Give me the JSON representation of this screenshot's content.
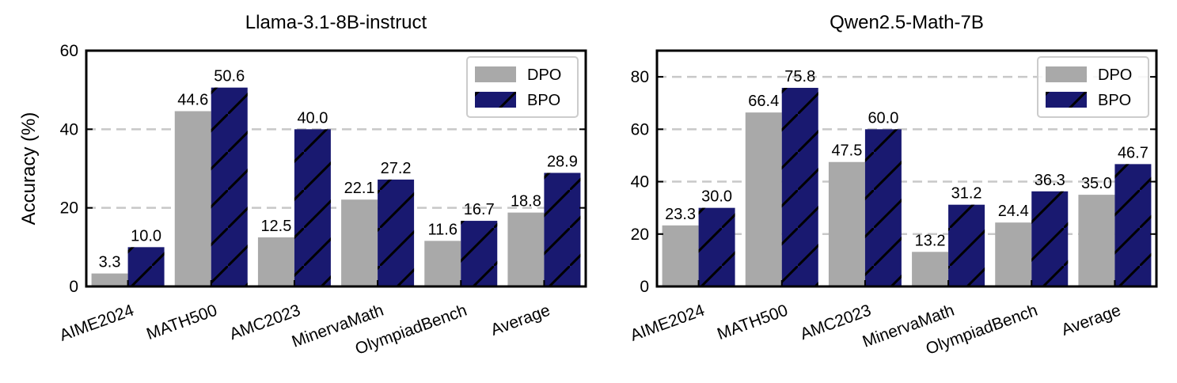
{
  "colors": {
    "dpo": "#a9a9a9",
    "bpo": "#191970",
    "grid": "#c8c8c8",
    "hatch": "#000000"
  },
  "chart_data": [
    {
      "type": "bar",
      "title": "Llama-3.1-8B-instruct",
      "ylabel": "Accuracy (%)",
      "xlabel": "",
      "ylim": [
        0,
        60
      ],
      "yticks": [
        0,
        20,
        40,
        60
      ],
      "grid": "horizontal dashed",
      "legend_position": "top-right",
      "categories": [
        "AIME2024",
        "MATH500",
        "AMC2023",
        "MinervaMath",
        "OlympiadBench",
        "Average"
      ],
      "series": [
        {
          "name": "DPO",
          "values": [
            3.3,
            44.6,
            12.5,
            22.1,
            11.6,
            18.8
          ],
          "labels": [
            "3.3",
            "44.6",
            "12.5",
            "22.1",
            "11.6",
            "18.8"
          ]
        },
        {
          "name": "BPO",
          "values": [
            10.0,
            50.6,
            40.0,
            27.2,
            16.7,
            28.9
          ],
          "labels": [
            "10.0",
            "50.6",
            "40.0",
            "27.2",
            "16.7",
            "28.9"
          ]
        }
      ]
    },
    {
      "type": "bar",
      "title": "Qwen2.5-Math-7B",
      "ylabel": "",
      "xlabel": "",
      "ylim": [
        0,
        90
      ],
      "yticks": [
        0,
        20,
        40,
        60,
        80
      ],
      "grid": "horizontal dashed",
      "legend_position": "top-right",
      "categories": [
        "AIME2024",
        "MATH500",
        "AMC2023",
        "MinervaMath",
        "OlympiadBench",
        "Average"
      ],
      "series": [
        {
          "name": "DPO",
          "values": [
            23.3,
            66.4,
            47.5,
            13.2,
            24.4,
            35.0
          ],
          "labels": [
            "23.3",
            "66.4",
            "47.5",
            "13.2",
            "24.4",
            "35.0"
          ]
        },
        {
          "name": "BPO",
          "values": [
            30.0,
            75.8,
            60.0,
            31.2,
            36.3,
            46.7
          ],
          "labels": [
            "30.0",
            "75.8",
            "60.0",
            "31.2",
            "36.3",
            "46.7"
          ]
        }
      ]
    }
  ]
}
